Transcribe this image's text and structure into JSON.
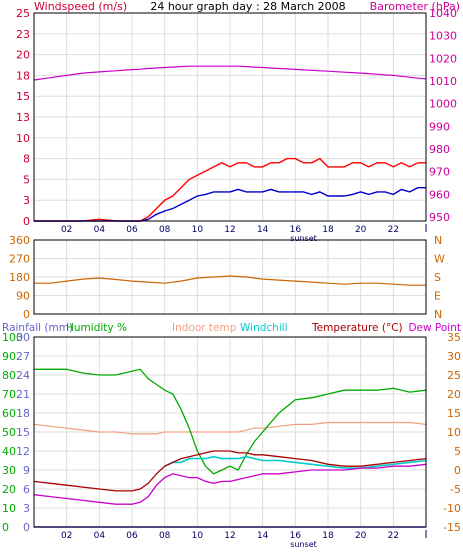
{
  "chart_data": [
    {
      "type": "line",
      "title": "24 hour graph day : 28 March 2008",
      "left_axis_label": "Windspeed (m/s)",
      "right_axis_label": "Barometer (hPa)",
      "left_ylim": [
        0,
        25
      ],
      "left_ticks": [
        "0",
        "3",
        "5",
        "8",
        "10",
        "13",
        "15",
        "18",
        "20",
        "23",
        "25"
      ],
      "right_ylim": [
        950,
        1040
      ],
      "right_ticks": [
        "950",
        "960",
        "970",
        "980",
        "990",
        "1000",
        "1010",
        "1020",
        "1030",
        "1040"
      ],
      "x_ticks": [
        "02",
        "04",
        "06",
        "08",
        "10",
        "12",
        "14",
        "16",
        "18",
        "20",
        "22"
      ],
      "x_marker_label": "sunset",
      "grid": true,
      "colors": {
        "gust": "#ff0000",
        "avg": "#0000cc",
        "barometer": "#cc00cc"
      },
      "x": [
        0,
        1,
        2,
        3,
        4,
        5,
        6,
        6.5,
        7,
        7.5,
        8,
        8.5,
        9,
        9.5,
        10,
        10.5,
        11,
        11.5,
        12,
        12.5,
        13,
        13.5,
        14,
        14.5,
        15,
        15.5,
        16,
        16.5,
        17,
        17.5,
        18,
        18.5,
        19,
        19.5,
        20,
        20.5,
        21,
        21.5,
        22,
        22.5,
        23,
        23.5,
        24
      ],
      "series": [
        {
          "role": "gust",
          "values": [
            0,
            0,
            0,
            0,
            0.2,
            0,
            0,
            0,
            0.5,
            1.5,
            2.5,
            3,
            4,
            5,
            5.5,
            6,
            6.5,
            7,
            6.5,
            7,
            7,
            6.5,
            6.5,
            7,
            7,
            7.5,
            7.5,
            7,
            7,
            7.5,
            6.5,
            6.5,
            6.5,
            7,
            7,
            6.5,
            7,
            7,
            6.5,
            7,
            6.5,
            7,
            7
          ]
        },
        {
          "role": "avg",
          "values": [
            0,
            0,
            0,
            0,
            0,
            0,
            0,
            0,
            0.2,
            0.8,
            1.2,
            1.5,
            2,
            2.5,
            3,
            3.2,
            3.5,
            3.5,
            3.5,
            3.8,
            3.5,
            3.5,
            3.5,
            3.8,
            3.5,
            3.5,
            3.5,
            3.5,
            3.2,
            3.5,
            3,
            3,
            3,
            3.2,
            3.5,
            3.2,
            3.5,
            3.5,
            3.2,
            3.8,
            3.5,
            4,
            4
          ]
        },
        {
          "role": "barometer",
          "values": [
            1011,
            1012,
            1013,
            1014,
            1014.5,
            1015,
            1015.5,
            1015.7,
            1016,
            1016.2,
            1016.4,
            1016.6,
            1016.8,
            1017,
            1017,
            1017,
            1017,
            1017,
            1017,
            1017,
            1016.8,
            1016.6,
            1016.4,
            1016.2,
            1016,
            1015.8,
            1015.6,
            1015.4,
            1015.2,
            1015,
            1014.8,
            1014.6,
            1014.4,
            1014.2,
            1014,
            1013.8,
            1013.5,
            1013.2,
            1013,
            1012.6,
            1012.2,
            1011.8,
            1011.5
          ]
        }
      ]
    },
    {
      "type": "line",
      "left_ylim": [
        0,
        360
      ],
      "left_ticks": [
        "0",
        "90",
        "180",
        "270",
        "360"
      ],
      "right_ticks": [
        "N",
        "E",
        "S",
        "W",
        "N"
      ],
      "grid": true,
      "colors": {
        "direction": "#cc6600"
      },
      "x": [
        0,
        1,
        2,
        3,
        4,
        5,
        6,
        7,
        8,
        9,
        10,
        11,
        12,
        13,
        14,
        15,
        16,
        17,
        18,
        19,
        20,
        21,
        22,
        23,
        24
      ],
      "series": [
        {
          "role": "wind-direction",
          "values": [
            150,
            150,
            160,
            170,
            175,
            168,
            160,
            155,
            150,
            160,
            175,
            180,
            185,
            180,
            170,
            165,
            160,
            155,
            150,
            145,
            150,
            150,
            145,
            140,
            140
          ]
        }
      ]
    },
    {
      "type": "line",
      "legend_labels": [
        "Rainfall (mm)",
        "Humidity %",
        "Indoor temp",
        "Windchill",
        "Temperature (°C)",
        "Dew Point"
      ],
      "legend_colors": [
        "#6666cc",
        "#00aa00",
        "#f0a080",
        "#00cccc",
        "#aa0000",
        "#cc00cc"
      ],
      "humidity_ticks": [
        "0",
        "10",
        "20",
        "30",
        "40",
        "50",
        "60",
        "70",
        "80",
        "90",
        "100"
      ],
      "rain_ticks": [
        "0",
        "3",
        "6",
        "9",
        "12",
        "15",
        "18",
        "21",
        "24",
        "27",
        "30"
      ],
      "temp_ylim": [
        -15,
        35
      ],
      "temp_ticks": [
        "-15",
        "-10",
        "-5",
        "0",
        "5",
        "10",
        "15",
        "20",
        "25",
        "30",
        "35"
      ],
      "x_ticks": [
        "02",
        "04",
        "06",
        "08",
        "10",
        "12",
        "14",
        "16",
        "18",
        "20",
        "22"
      ],
      "x_marker_label": "sunset",
      "grid": true,
      "x": [
        0,
        1,
        2,
        3,
        4,
        5,
        6,
        6.5,
        7,
        7.5,
        8,
        8.5,
        9,
        9.5,
        10,
        10.5,
        11,
        11.5,
        12,
        12.5,
        13,
        13.5,
        14,
        15,
        16,
        17,
        18,
        19,
        20,
        21,
        22,
        23,
        24
      ],
      "series": [
        {
          "role": "humidity",
          "values": [
            83,
            83,
            83,
            81,
            80,
            80,
            82,
            83,
            78,
            75,
            72,
            70,
            62,
            52,
            40,
            32,
            28,
            30,
            32,
            30,
            38,
            45,
            50,
            60,
            67,
            68,
            70,
            72,
            72,
            72,
            73,
            71,
            72
          ]
        },
        {
          "role": "indoor-temp",
          "values": [
            12,
            11.5,
            11,
            10.5,
            10,
            10,
            9.5,
            9.5,
            9.5,
            9.5,
            10,
            10,
            10,
            10,
            10,
            10,
            10,
            10,
            10,
            10,
            10.5,
            11,
            11,
            11.5,
            12,
            12,
            12.5,
            12.5,
            12.5,
            12.5,
            12.5,
            12.5,
            12
          ]
        },
        {
          "role": "windchill",
          "values": [
            null,
            null,
            null,
            null,
            null,
            null,
            null,
            null,
            null,
            null,
            1,
            2,
            2,
            3,
            3,
            3,
            3.5,
            3,
            3,
            3,
            3.5,
            3,
            2.5,
            2.5,
            2,
            1.5,
            1,
            0.5,
            0.5,
            1,
            1.5,
            2,
            2.5
          ]
        },
        {
          "role": "temperature",
          "values": [
            -3,
            -3.5,
            -4,
            -4.5,
            -5,
            -5.5,
            -5.5,
            -5,
            -3.5,
            -1,
            1,
            2,
            3,
            3.5,
            4,
            4.5,
            5,
            5,
            5,
            4.5,
            4.5,
            4,
            4,
            3.5,
            3,
            2.5,
            1.5,
            1,
            1,
            1.5,
            2,
            2.5,
            3
          ]
        },
        {
          "role": "dew-point",
          "values": [
            -6.5,
            -7,
            -7.5,
            -8,
            -8.5,
            -9,
            -9,
            -8.5,
            -7,
            -4,
            -2,
            -1,
            -1.5,
            -2,
            -2,
            -3,
            -3.5,
            -3,
            -3,
            -2.5,
            -2,
            -1.5,
            -1,
            -1,
            -0.5,
            0,
            0,
            0,
            0.5,
            0.5,
            1,
            1,
            1.5
          ]
        },
        {
          "role": "rainfall",
          "values": [
            0,
            0,
            0,
            0,
            0,
            0,
            0,
            0,
            0,
            0,
            0,
            0,
            0,
            0,
            0,
            0,
            0,
            0,
            0,
            0,
            0,
            0,
            0,
            0,
            0,
            0,
            0,
            0,
            0,
            0,
            0,
            0,
            0
          ]
        }
      ]
    }
  ]
}
